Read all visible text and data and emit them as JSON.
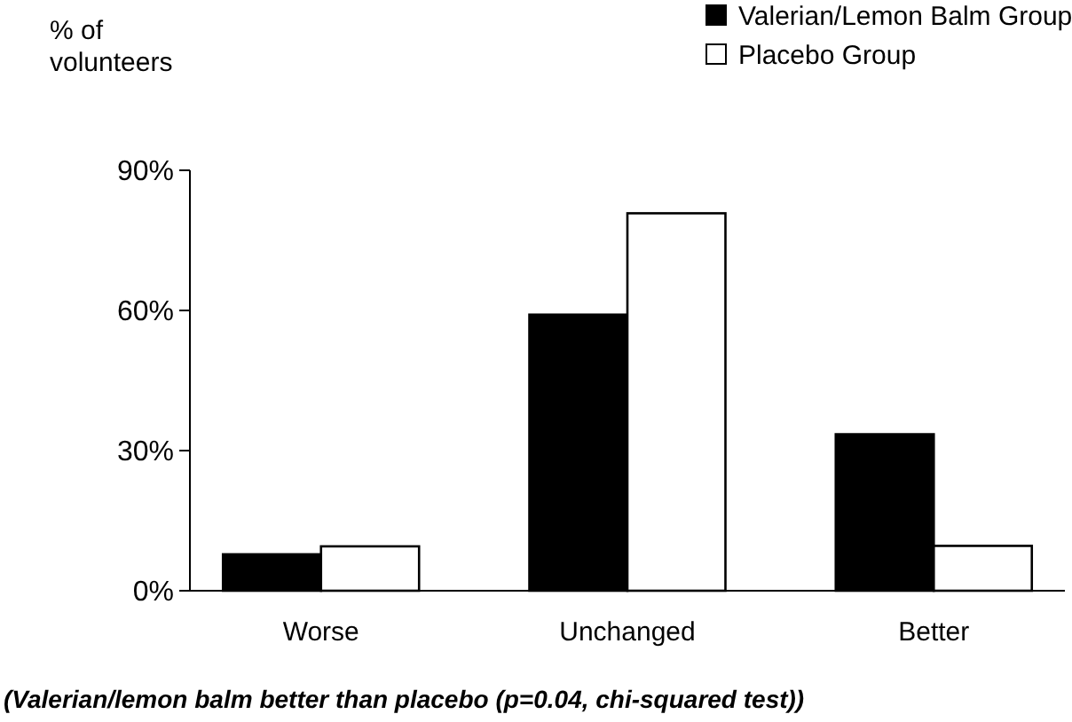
{
  "chart_data": {
    "type": "bar",
    "ylabel": "% of volunteers",
    "categories": [
      "Worse",
      "Unchanged",
      "Better"
    ],
    "series": [
      {
        "name": "Valerian/Lemon Balm Group",
        "color": "#000000",
        "values": [
          7.8,
          59.1,
          33.5
        ]
      },
      {
        "name": "Placebo Group",
        "color": "#ffffff",
        "values": [
          9.5,
          80.8,
          9.6
        ]
      }
    ],
    "ylim": [
      0,
      90
    ],
    "yticks": [
      {
        "value": 0,
        "label": "0%"
      },
      {
        "value": 30,
        "label": "30%"
      },
      {
        "value": 60,
        "label": "60%"
      },
      {
        "value": 90,
        "label": "90%"
      }
    ],
    "grid": false,
    "legend": "top right",
    "annotations": [
      "(Valerian/lemon balm better than placebo (p=0.04, chi-squared test))"
    ]
  }
}
